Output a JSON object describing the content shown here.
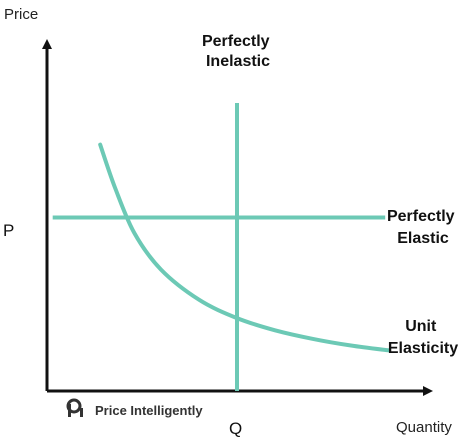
{
  "chart_data": {
    "type": "line",
    "xlabel": "Quantity",
    "ylabel": "Price",
    "x_ticks": [
      {
        "label": "Q",
        "value": 5
      }
    ],
    "y_ticks": [
      {
        "label": "P",
        "value": 5
      }
    ],
    "xlim": [
      0,
      10
    ],
    "ylim": [
      0,
      10
    ],
    "grid": false,
    "legend": "none",
    "series": [
      {
        "name": "Perfectly Inelastic",
        "label_lines": [
          "Perfectly",
          "Inelastic"
        ],
        "color": "#6cc9b5",
        "x": [
          5,
          5
        ],
        "y": [
          0,
          8.3
        ]
      },
      {
        "name": "Perfectly Elastic",
        "label_lines": [
          "Perfectly",
          "Elastic"
        ],
        "color": "#6cc9b5",
        "x": [
          0.15,
          8.9
        ],
        "y": [
          5,
          5
        ]
      },
      {
        "name": "Unit Elasticity",
        "label_lines": [
          "Unit",
          "Elasticity"
        ],
        "color": "#6cc9b5",
        "x": [
          1.4,
          1.8,
          2.3,
          3.0,
          4.0,
          5.0,
          6.0,
          7.0,
          8.0,
          9.0
        ],
        "y": [
          7.1,
          5.83,
          4.55,
          3.5,
          2.63,
          2.1,
          1.75,
          1.5,
          1.31,
          1.17
        ]
      }
    ]
  },
  "brand": {
    "name": "Price Intelligently",
    "logo_icon": "pi-logo-icon",
    "color": "#333333"
  }
}
